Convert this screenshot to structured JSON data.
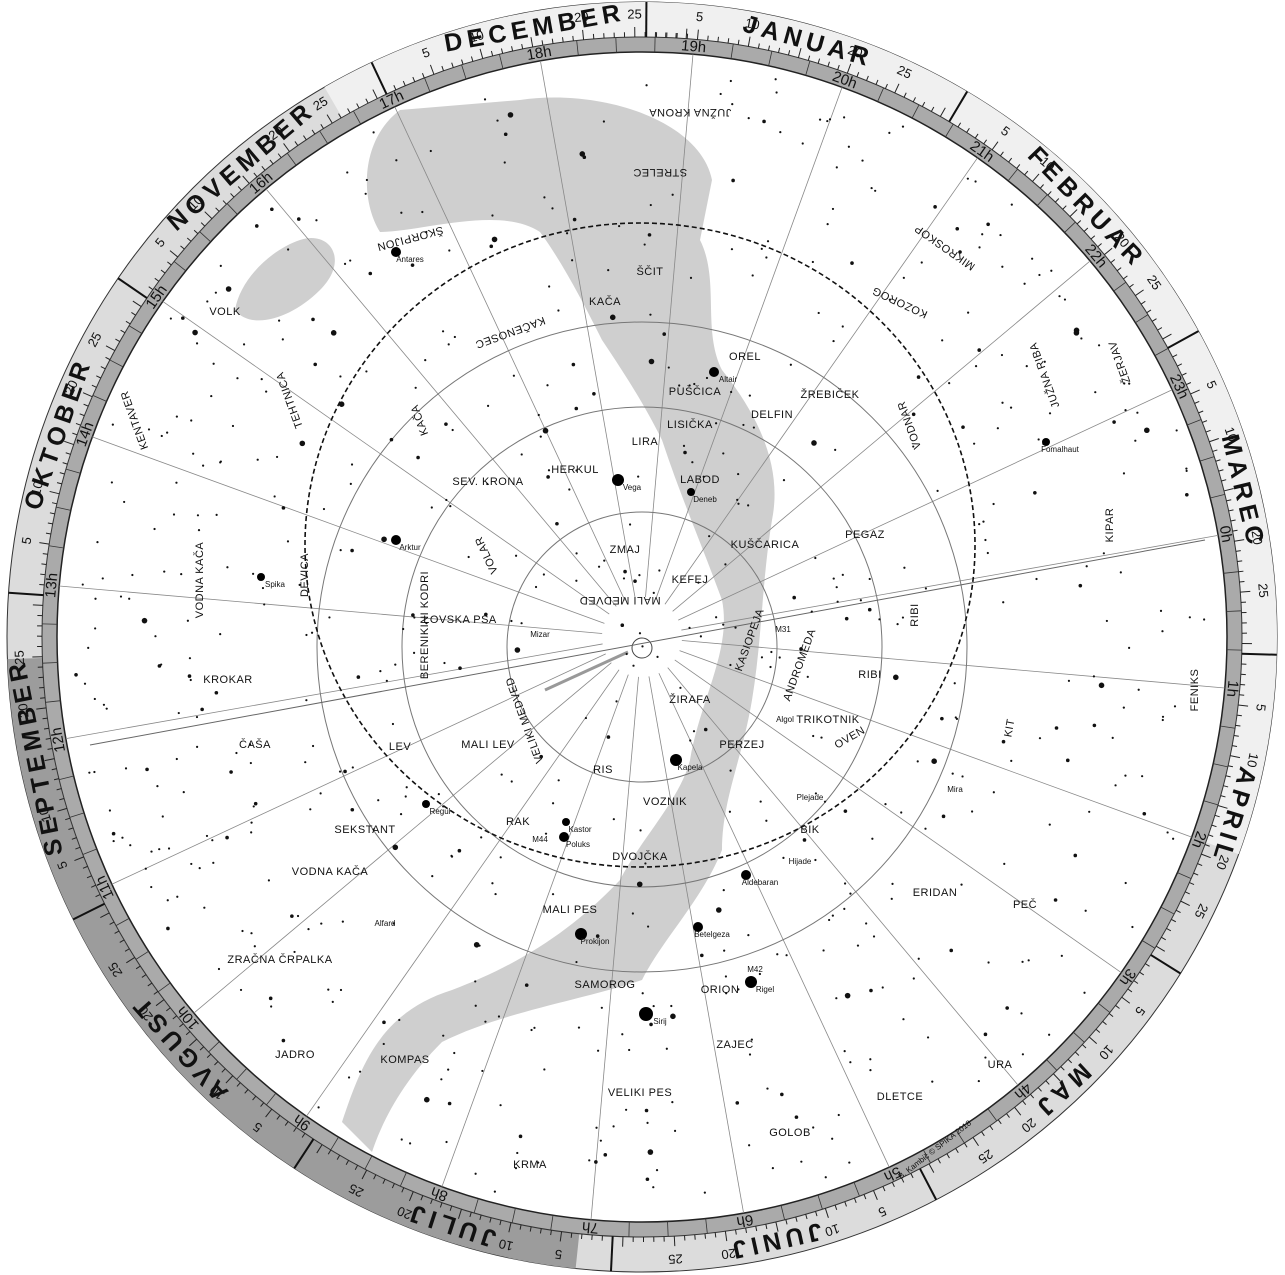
{
  "ring": {
    "months": [
      "JANUAR",
      "FEBRUAR",
      "MAREC",
      "APRIL",
      "MAJ",
      "JUNIJ",
      "JULIJ",
      "AVGUST",
      "SEPTEMBER",
      "OKTOBER",
      "NOVEMBER",
      "DECEMBER"
    ],
    "day_marks": [
      5,
      10,
      15,
      20,
      25
    ],
    "hours": [
      "0h",
      "1h",
      "2h",
      "3h",
      "4h",
      "5h",
      "6h",
      "7h",
      "8h",
      "9h",
      "10h",
      "11h",
      "12h",
      "13h",
      "14h",
      "15h",
      "16h",
      "17h",
      "18h",
      "19h",
      "20h",
      "21h",
      "22h",
      "23h"
    ]
  },
  "constellations": [
    "STRELEC",
    "ŠKORPIJON",
    "JUŽNA KRONA",
    "ŠČIT",
    "KAČA",
    "KAČENOSEC",
    "OREL",
    "MIKROSKOP",
    "KOZOROG",
    "PUŠČICA",
    "LISIČKA",
    "DELFIN",
    "ŽREBIČEK",
    "VODNAR",
    "JUŽNA RIBA",
    "ŽERJAV",
    "LIRA",
    "HERKUL",
    "LABOD",
    "SEV. KRONA",
    "TEHTNICA",
    "KAČA",
    "KENTAVER",
    "VOLK",
    "VOLAR",
    "ZMAJ",
    "KEFEJ",
    "KUŠČARICA",
    "PEGAZ",
    "KIPAR",
    "DEVICA",
    "VODNA KAČA",
    "LOVSKA PSA",
    "BERENIKINI KODRI",
    "MALI MEDVED",
    "KASIOPEJA",
    "ANDROMEDA",
    "RIBI",
    "RIBI",
    "FENIKS",
    "KROKAR",
    "VELIKI MEDVED",
    "ŽIRAFA",
    "TRIKOTNIK",
    "OVEN",
    "KIT",
    "ČAŠA",
    "LEV",
    "MALI LEV",
    "RIS",
    "PERZEJ",
    "VOZNIK",
    "SEKSTANT",
    "RAK",
    "DVOJČKA",
    "BIK",
    "ERIDAN",
    "PEČ",
    "VODNA KAČA",
    "ZRAČNA ČRPALKA",
    "MALI PES",
    "SAMOROG",
    "ORION",
    "ZAJEC",
    "JADRO",
    "KOMPAS",
    "VELIKI PES",
    "DLETCE",
    "URA",
    "KRMA",
    "GOLOB"
  ],
  "stars": [
    "Antares",
    "Altair",
    "Vega",
    "Deneb",
    "Arktur",
    "Spika",
    "Regul",
    "Kastor",
    "Poluks",
    "Kapela",
    "Algol",
    "Plejade",
    "Hijade",
    "Aldebaran",
    "Betelgeza",
    "Rigel",
    "Prokijon",
    "Sirij",
    "Alfard",
    "Fomalhaut",
    "Mira",
    "M31",
    "M42",
    "M44",
    "Mizar"
  ],
  "credit": "B. Kambič © SPIKA 2018"
}
